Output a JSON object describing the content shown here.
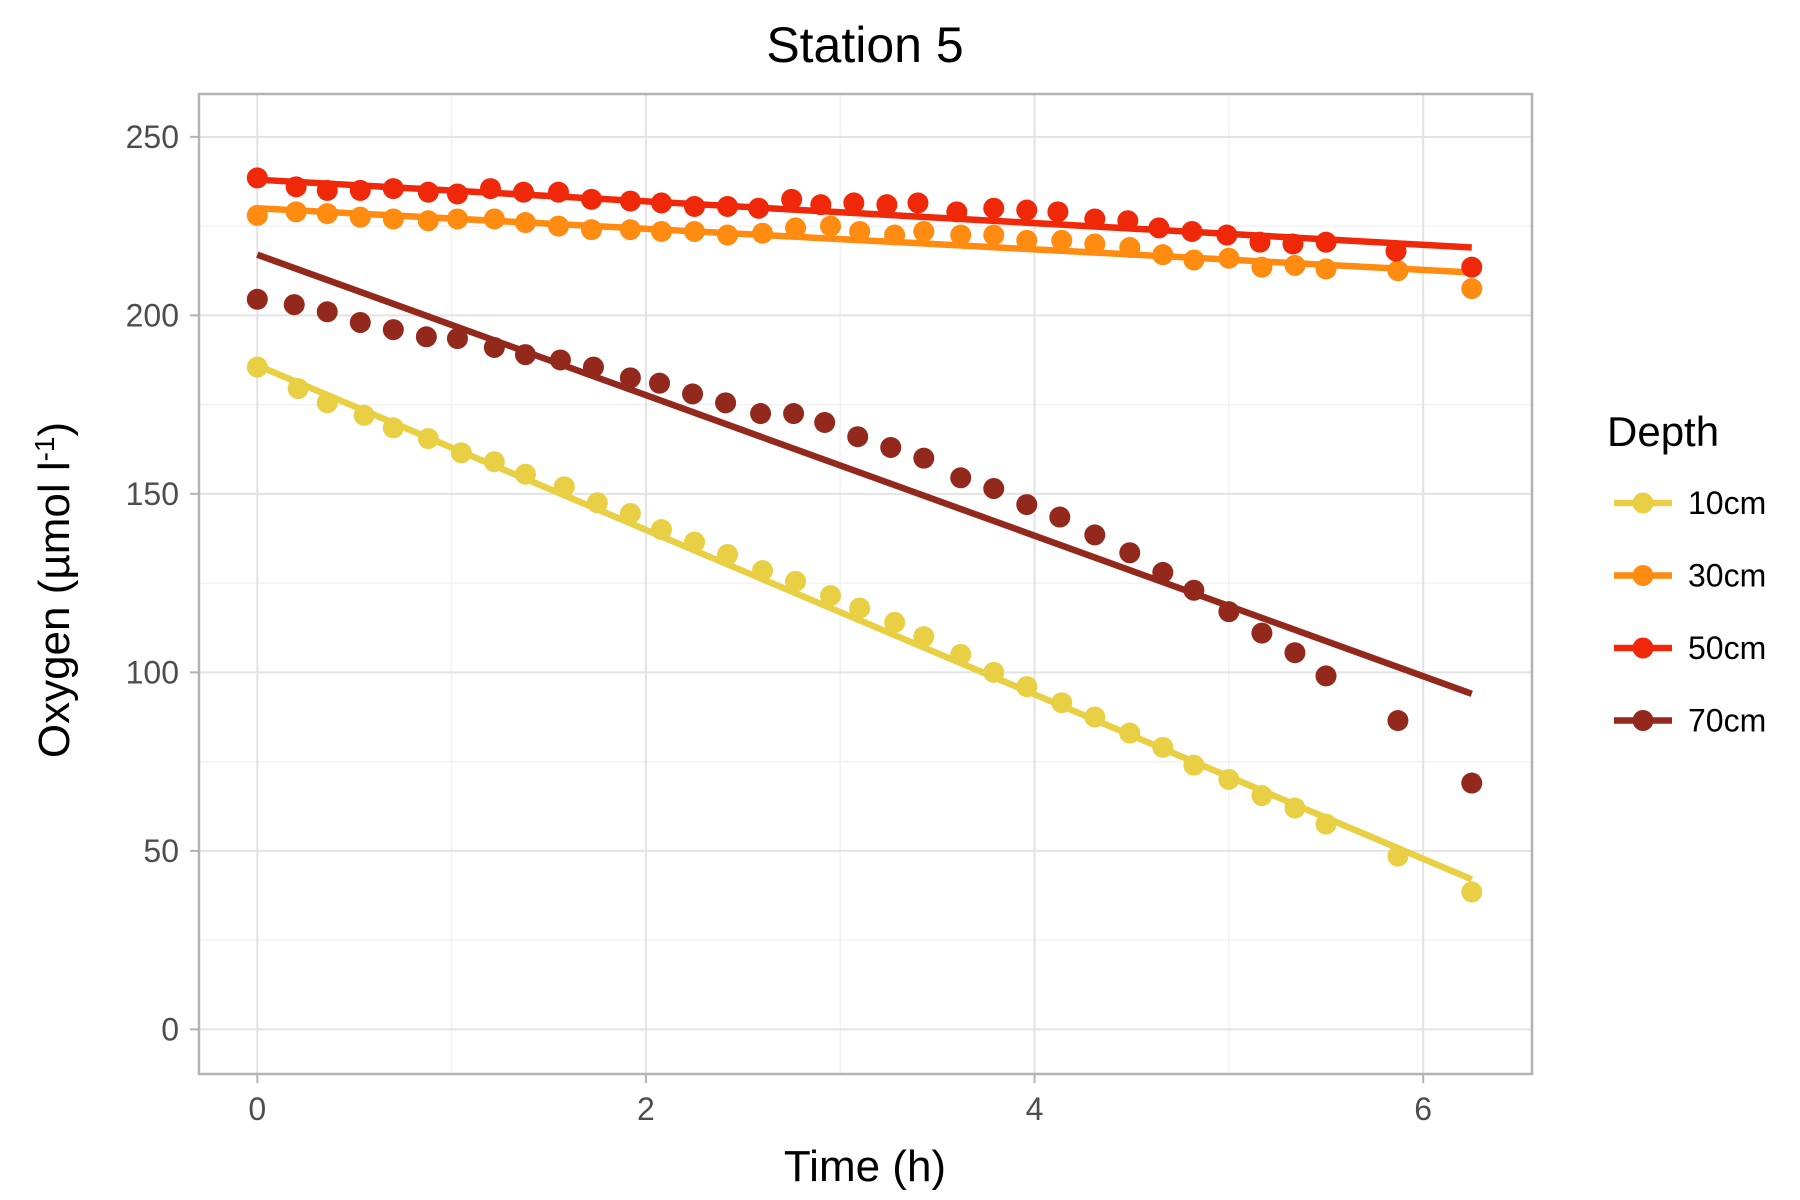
{
  "chart_data": {
    "type": "scatter",
    "title": "Station 5",
    "xlabel": "Time (h)",
    "ylabel": "Oxygen (µmol l",
    "ylabel_superscript": "-1",
    "ylabel_close": ")",
    "xlim": [
      -0.3,
      6.56
    ],
    "ylim": [
      -12.5,
      262
    ],
    "xticks": [
      0,
      2,
      4,
      6
    ],
    "xtick_labels": [
      "0",
      "2",
      "4",
      "6"
    ],
    "yticks": [
      0,
      50,
      100,
      150,
      200,
      250
    ],
    "ytick_labels": [
      "0",
      "50",
      "100",
      "150",
      "200",
      "250"
    ],
    "grid": true,
    "legend": {
      "title": "Depth",
      "position": "right"
    },
    "series": [
      {
        "name": "10cm",
        "color": "#E8CF44",
        "fit": [
          [
            0,
            186
          ],
          [
            6.25,
            42
          ]
        ],
        "points": [
          [
            0,
            185.5
          ],
          [
            0.21,
            179.5
          ],
          [
            0.36,
            175.5
          ],
          [
            0.55,
            172
          ],
          [
            0.7,
            168.5
          ],
          [
            0.88,
            165.5
          ],
          [
            1.05,
            161.5
          ],
          [
            1.22,
            159
          ],
          [
            1.38,
            155.5
          ],
          [
            1.58,
            152
          ],
          [
            1.75,
            147.5
          ],
          [
            1.92,
            144.5
          ],
          [
            2.08,
            140
          ],
          [
            2.25,
            136.5
          ],
          [
            2.42,
            133
          ],
          [
            2.6,
            128.5
          ],
          [
            2.77,
            125.5
          ],
          [
            2.95,
            121.5
          ],
          [
            3.1,
            118
          ],
          [
            3.28,
            114
          ],
          [
            3.43,
            110
          ],
          [
            3.62,
            105
          ],
          [
            3.79,
            100
          ],
          [
            3.96,
            96
          ],
          [
            4.14,
            91.5
          ],
          [
            4.31,
            87.5
          ],
          [
            4.49,
            83
          ],
          [
            4.66,
            79
          ],
          [
            4.82,
            74
          ],
          [
            5,
            70
          ],
          [
            5.17,
            65.5
          ],
          [
            5.34,
            62
          ],
          [
            5.5,
            57.5
          ],
          [
            5.87,
            48.5
          ],
          [
            6.25,
            38.5
          ]
        ]
      },
      {
        "name": "30cm",
        "color": "#FF8B10",
        "fit": [
          [
            0,
            230
          ],
          [
            6.25,
            212
          ]
        ],
        "points": [
          [
            0,
            228
          ],
          [
            0.2,
            229
          ],
          [
            0.36,
            228.5
          ],
          [
            0.53,
            227.5
          ],
          [
            0.7,
            227
          ],
          [
            0.88,
            226.5
          ],
          [
            1.03,
            227
          ],
          [
            1.22,
            227
          ],
          [
            1.38,
            226
          ],
          [
            1.55,
            225
          ],
          [
            1.72,
            224
          ],
          [
            1.92,
            224
          ],
          [
            2.08,
            223.5
          ],
          [
            2.25,
            223.5
          ],
          [
            2.42,
            222.5
          ],
          [
            2.6,
            223
          ],
          [
            2.77,
            224.5
          ],
          [
            2.95,
            225
          ],
          [
            3.1,
            223.5
          ],
          [
            3.28,
            222.5
          ],
          [
            3.43,
            223.5
          ],
          [
            3.62,
            222.5
          ],
          [
            3.79,
            222.5
          ],
          [
            3.96,
            221
          ],
          [
            4.14,
            221
          ],
          [
            4.31,
            220
          ],
          [
            4.49,
            219
          ],
          [
            4.66,
            217
          ],
          [
            4.82,
            215.5
          ],
          [
            5,
            216
          ],
          [
            5.17,
            213.5
          ],
          [
            5.34,
            214
          ],
          [
            5.5,
            213
          ],
          [
            5.87,
            212.5
          ],
          [
            6.25,
            207.5
          ]
        ]
      },
      {
        "name": "50cm",
        "color": "#F0280A",
        "fit": [
          [
            0,
            238
          ],
          [
            6.25,
            219
          ]
        ],
        "points": [
          [
            0,
            238.5
          ],
          [
            0.2,
            236
          ],
          [
            0.36,
            235
          ],
          [
            0.53,
            235
          ],
          [
            0.7,
            235.5
          ],
          [
            0.88,
            234.5
          ],
          [
            1.03,
            234
          ],
          [
            1.2,
            235.5
          ],
          [
            1.37,
            234.5
          ],
          [
            1.55,
            234.5
          ],
          [
            1.72,
            232.5
          ],
          [
            1.92,
            232
          ],
          [
            2.08,
            231.5
          ],
          [
            2.25,
            230.5
          ],
          [
            2.42,
            230.5
          ],
          [
            2.58,
            230
          ],
          [
            2.75,
            232.5
          ],
          [
            2.9,
            231
          ],
          [
            3.07,
            231.5
          ],
          [
            3.24,
            231
          ],
          [
            3.4,
            231.5
          ],
          [
            3.6,
            229
          ],
          [
            3.79,
            230
          ],
          [
            3.96,
            229.5
          ],
          [
            4.12,
            229
          ],
          [
            4.31,
            227
          ],
          [
            4.48,
            226.5
          ],
          [
            4.64,
            224.5
          ],
          [
            4.81,
            223.5
          ],
          [
            4.99,
            222.5
          ],
          [
            5.16,
            220.5
          ],
          [
            5.33,
            220
          ],
          [
            5.5,
            220.5
          ],
          [
            5.86,
            218
          ],
          [
            6.25,
            213.5
          ]
        ]
      },
      {
        "name": "70cm",
        "color": "#93281C",
        "fit": [
          [
            0,
            217
          ],
          [
            6.25,
            94
          ]
        ],
        "points": [
          [
            0,
            204.5
          ],
          [
            0.19,
            203
          ],
          [
            0.36,
            201
          ],
          [
            0.53,
            198
          ],
          [
            0.7,
            196
          ],
          [
            0.87,
            194
          ],
          [
            1.03,
            193.5
          ],
          [
            1.22,
            191
          ],
          [
            1.38,
            189
          ],
          [
            1.56,
            187.5
          ],
          [
            1.73,
            185.5
          ],
          [
            1.92,
            182.5
          ],
          [
            2.07,
            181
          ],
          [
            2.24,
            178
          ],
          [
            2.41,
            175.5
          ],
          [
            2.59,
            172.5
          ],
          [
            2.76,
            172.5
          ],
          [
            2.92,
            170
          ],
          [
            3.09,
            166
          ],
          [
            3.26,
            163
          ],
          [
            3.43,
            160
          ],
          [
            3.62,
            154.5
          ],
          [
            3.79,
            151.5
          ],
          [
            3.96,
            147
          ],
          [
            4.13,
            143.5
          ],
          [
            4.31,
            138.5
          ],
          [
            4.49,
            133.5
          ],
          [
            4.66,
            128
          ],
          [
            4.82,
            123
          ],
          [
            5,
            117
          ],
          [
            5.17,
            111
          ],
          [
            5.34,
            105.5
          ],
          [
            5.5,
            99
          ],
          [
            5.87,
            86.5
          ],
          [
            6.25,
            69
          ]
        ]
      }
    ]
  }
}
